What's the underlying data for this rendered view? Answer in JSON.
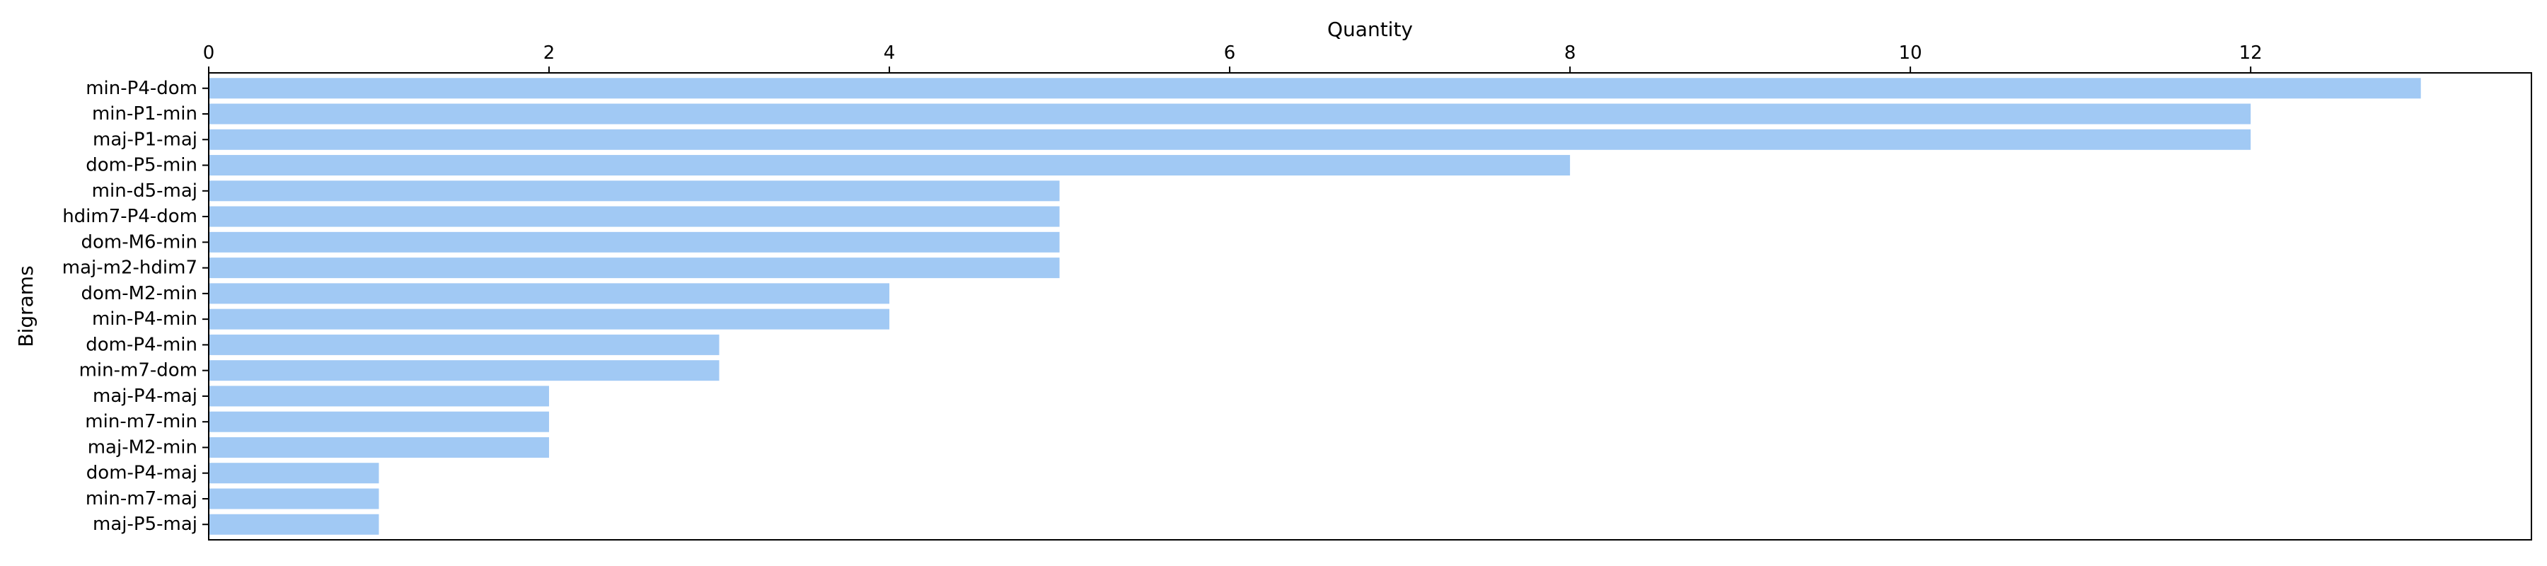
{
  "chart_data": {
    "type": "bar",
    "orientation": "horizontal",
    "xlabel": "Quantity",
    "ylabel": "Bigrams",
    "xlim": [
      0,
      13.65
    ],
    "x_ticks": [
      0,
      2,
      4,
      6,
      8,
      10,
      12
    ],
    "x_axis_position": "top",
    "grid": false,
    "bar_color": "#a1c9f4",
    "categories": [
      "min-P4-dom",
      "min-P1-min",
      "maj-P1-maj",
      "dom-P5-min",
      "min-d5-maj",
      "hdim7-P4-dom",
      "dom-M6-min",
      "maj-m2-hdim7",
      "dom-M2-min",
      "min-P4-min",
      "dom-P4-min",
      "min-m7-dom",
      "maj-P4-maj",
      "min-m7-min",
      "maj-M2-min",
      "dom-P4-maj",
      "min-m7-maj",
      "maj-P5-maj"
    ],
    "values": [
      13,
      12,
      12,
      8,
      5,
      5,
      5,
      5,
      4,
      4,
      3,
      3,
      2,
      2,
      2,
      1,
      1,
      1
    ]
  }
}
